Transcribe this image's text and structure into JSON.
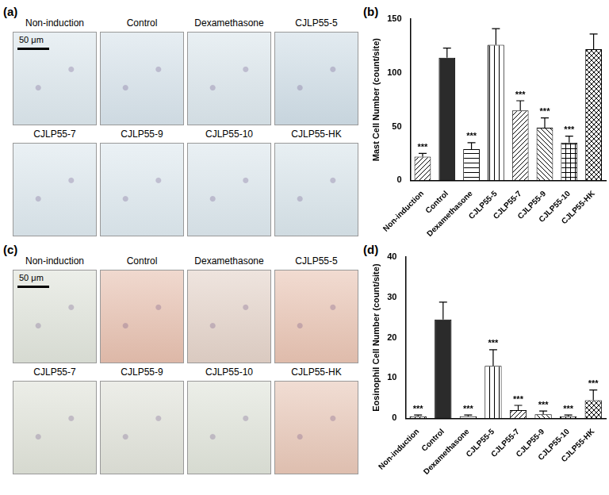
{
  "figure": {
    "image_panels": [
      {
        "label": "(a)",
        "images": [
          "Non-induction",
          "Control",
          "Dexamethasone",
          "CJLP55-5",
          "CJLP55-7",
          "CJLP55-9",
          "CJLP55-10",
          "CJLP55-HK"
        ],
        "scale_bar": "50 μm"
      },
      {
        "label": "(c)",
        "images": [
          "Non-induction",
          "Control",
          "Dexamethasone",
          "CJLP55-5",
          "CJLP55-7",
          "CJLP55-9",
          "CJLP55-10",
          "CJLP55-HK"
        ],
        "scale_bar": "50 μm"
      }
    ],
    "chart_panels": [
      "(b)",
      "(d)"
    ]
  },
  "chart_data": [
    {
      "type": "bar",
      "y_label": "Mast Cell Number (count/site)",
      "categories": [
        "Non-induction",
        "Control",
        "Dexamethasone",
        "CJLP55-5",
        "CJLP55-7",
        "CJLP55-9",
        "CJLP55-10",
        "CJLP55-HK"
      ],
      "values": [
        22,
        114,
        29,
        126,
        65,
        49,
        35,
        122
      ],
      "errors": [
        3,
        9,
        6,
        15,
        9,
        9,
        6,
        14
      ],
      "annotations": [
        "***",
        null,
        "***",
        null,
        "***",
        "***",
        "***",
        null
      ],
      "colors": [
        "#ffffff",
        "#2b2b2b",
        "#ffffff",
        "#ffffff",
        "#ffffff",
        "#ffffff",
        "#ffffff",
        "#ffffff"
      ],
      "ylim": [
        0,
        150
      ],
      "yticks": [
        0,
        50,
        100,
        150
      ],
      "grid": false
    },
    {
      "type": "bar",
      "y_label": "Eosinophil Cell Number (count/site)",
      "categories": [
        "Non-induction",
        "Control",
        "Dexamethasone",
        "CJLP55-5",
        "CJLP55-7",
        "CJLP55-9",
        "CJLP55-10",
        "CJLP55-HK"
      ],
      "values": [
        0.5,
        24.5,
        0.5,
        13,
        2,
        1,
        0.5,
        4.5
      ],
      "errors": [
        0.3,
        4.3,
        0.3,
        4,
        1.2,
        0.8,
        0.3,
        2.5
      ],
      "annotations": [
        "***",
        null,
        "***",
        "***",
        "***",
        "***",
        "***",
        "***"
      ],
      "colors": [
        "#ffffff",
        "#2b2b2b",
        "#ffffff",
        "#ffffff",
        "#ffffff",
        "#ffffff",
        "#ffffff",
        "#ffffff"
      ],
      "ylim": [
        0,
        40
      ],
      "yticks": [
        0,
        10,
        20,
        30,
        40
      ],
      "grid": false
    }
  ]
}
